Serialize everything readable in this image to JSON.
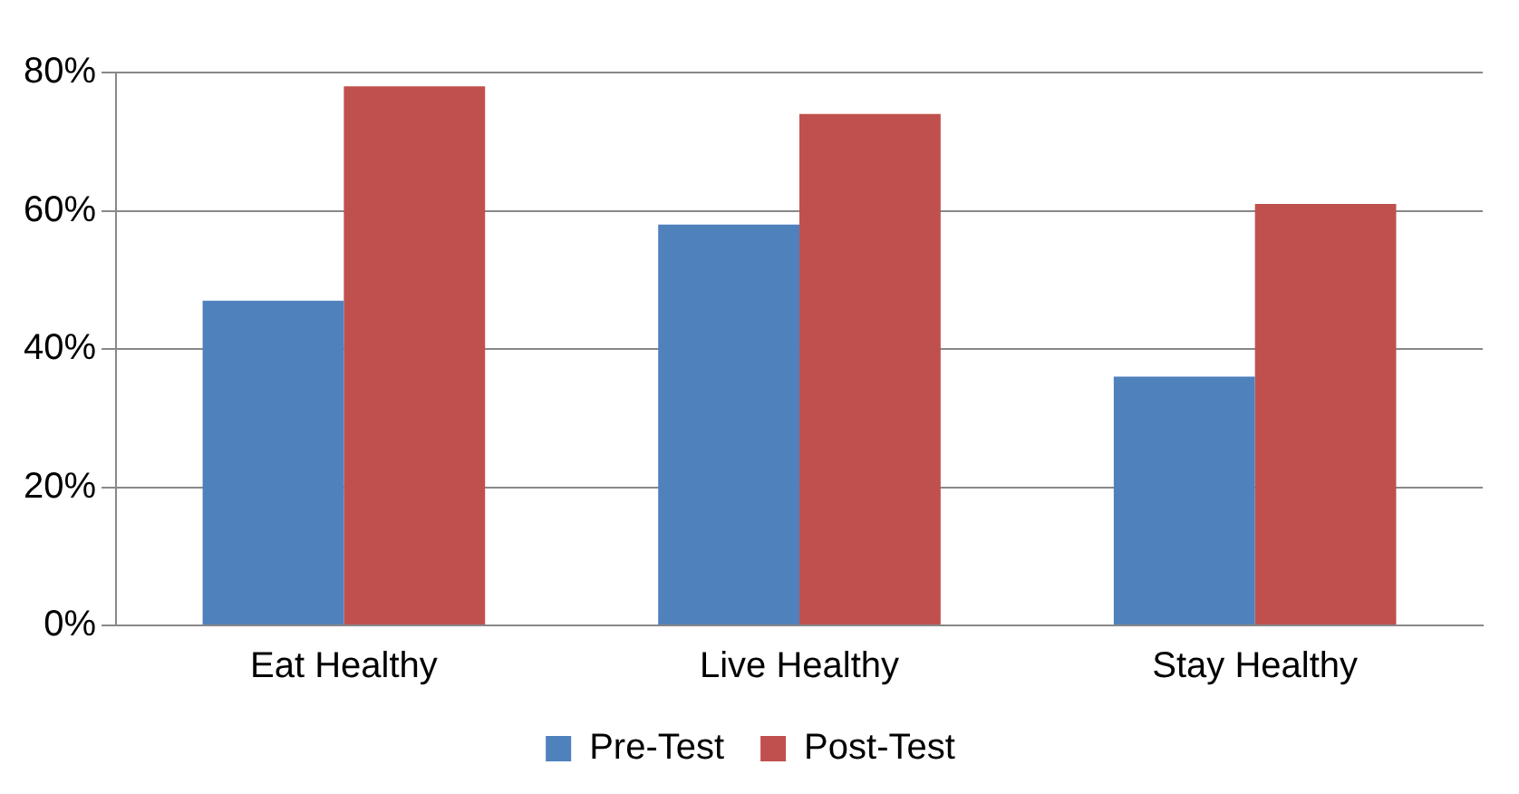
{
  "chart_data": {
    "type": "bar",
    "categories": [
      "Eat Healthy",
      "Live Healthy",
      "Stay Healthy"
    ],
    "series": [
      {
        "name": "Pre-Test",
        "color": "#4f81bd",
        "values": [
          47,
          58,
          36
        ]
      },
      {
        "name": "Post-Test",
        "color": "#c0504d",
        "values": [
          78,
          74,
          61
        ]
      }
    ],
    "ylim": [
      0,
      80
    ],
    "yticks": [
      {
        "value": 0,
        "label": "0%"
      },
      {
        "value": 20,
        "label": "20%"
      },
      {
        "value": 40,
        "label": "40%"
      },
      {
        "value": 60,
        "label": "60%"
      },
      {
        "value": 80,
        "label": "80%"
      }
    ],
    "grid": "y",
    "legend": "bottom"
  }
}
